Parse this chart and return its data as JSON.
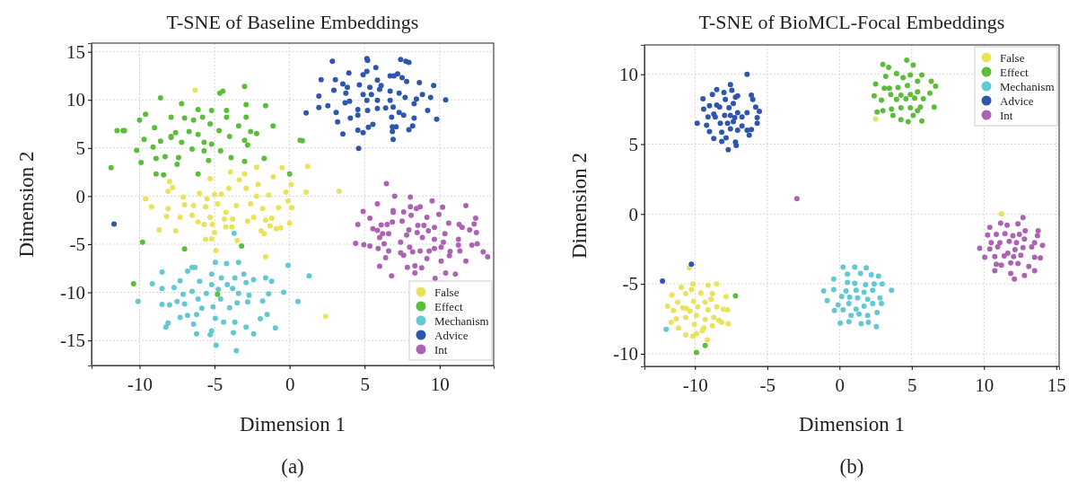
{
  "chart_data": [
    {
      "type": "scatter",
      "title": "T-SNE of Baseline Embeddings",
      "xlabel": "Dimension 1",
      "ylabel": "Dimension 2",
      "annotations": [
        "(a)"
      ],
      "xlim": [
        -13.2,
        13.6
      ],
      "ylim": [
        -17.6,
        15.9
      ],
      "xticks": [
        -10,
        -5,
        0,
        5,
        10
      ],
      "yticks": [
        -15,
        -10,
        -5,
        0,
        5,
        10,
        15
      ],
      "grid": true,
      "legend": "bottom right",
      "marker": "circle",
      "series": [
        {
          "name": "False",
          "color": "#e9e35c",
          "x": [
            -6.3,
            -2.2,
            -0.5,
            1.2,
            -3.95,
            -3.0,
            -5.3,
            -8.0,
            -7.8,
            -8.1,
            -3.35,
            -2.1,
            -1.1,
            0.1,
            1.1,
            3.3,
            -6.0,
            -7.1,
            -5.5,
            -5.0,
            -4.55,
            -4.05,
            -2.9,
            -2.2,
            -1.4,
            -0.25,
            -9.6,
            -9.2,
            -8.1,
            -7.0,
            -6.4,
            -5.6,
            -4.8,
            -4.25,
            -3.55,
            -2.6,
            -1.8,
            -0.75,
            -0.1,
            0.15,
            -8.2,
            -7.3,
            -6.5,
            -6.1,
            -5.3,
            -4.35,
            -3.8,
            -2.8,
            -2.4,
            -1.6,
            -1.2,
            0,
            -8.7,
            -7.6,
            -5.7,
            -5.15,
            -4.25,
            -3.85,
            -1.9,
            -1.7,
            -1.3,
            -0.9,
            -0.6,
            -5.6,
            -5.2,
            -5.0,
            -3.5,
            -4.9,
            -1.6,
            2.4
          ],
          "values": [
            11.0,
            3.0,
            2.95,
            3.1,
            2.5,
            2.3,
            1.8,
            1.5,
            0.9,
            0.5,
            1.7,
            1.2,
            2.0,
            1.2,
            0.4,
            0.5,
            0.3,
            -0.1,
            -0.3,
            0.15,
            0.2,
            0.8,
            0.8,
            0,
            0.1,
            0.4,
            -0.3,
            -1.1,
            -1.3,
            -0.9,
            -1.0,
            -1.1,
            -0.8,
            -1.7,
            -1.0,
            -0.8,
            -1.3,
            -1.2,
            -0.5,
            -1.2,
            -2.1,
            -2.2,
            -2.0,
            -2.7,
            -2.2,
            -2.4,
            -2.4,
            -2.6,
            -2.2,
            -2.5,
            -2.3,
            -2.8,
            -3.5,
            -3.6,
            -2.95,
            -2.95,
            -3.2,
            -3.2,
            -3.6,
            -3.9,
            -3.1,
            -3.4,
            -3.3,
            -4.5,
            -4.45,
            -3.8,
            -4.6,
            -5.65,
            -6.3,
            -12.5
          ]
        },
        {
          "name": "Effect",
          "color": "#5cbd3c",
          "x": [
            -3.0,
            -4.65,
            -4.45,
            -8.6,
            -7.2,
            -6.1,
            -5.2,
            -4.2,
            -2.9,
            -1.6,
            -9.6,
            -7.9,
            -7.0,
            -6.4,
            -5.8,
            -4.2,
            -2.9,
            -10.0,
            -11.5,
            -11.1,
            -11.0,
            -9.0,
            -7.9,
            -7.6,
            -6.7,
            -6.1,
            -5.3,
            -4.7,
            -3.4,
            -2.6,
            -1.1,
            -9.7,
            -9.1,
            -8.6,
            -7.9,
            -7.2,
            -6.5,
            -5.7,
            -5.2,
            -4.0,
            -3.0,
            -2.2,
            0.7,
            0.85,
            -10.2,
            -8.9,
            -8.3,
            -7.4,
            -7.5,
            -5.7,
            -5.4,
            -4.6,
            -3.9,
            -2.8,
            -1.7,
            -3.0,
            -9.9,
            -11.9,
            -8.9,
            -8.4,
            -6.1,
            0,
            -9.8,
            -7.0,
            -3.2,
            -10.4,
            -4.8
          ],
          "values": [
            11.4,
            10.7,
            10.9,
            10.2,
            9.6,
            9.0,
            8.9,
            8.9,
            9.5,
            9.4,
            8.5,
            8.2,
            8.1,
            7.9,
            8.2,
            8.2,
            8.2,
            7.9,
            6.8,
            6.8,
            6.8,
            7.1,
            6.2,
            6.6,
            6.7,
            6.4,
            7.5,
            6.8,
            7.3,
            6.7,
            7.3,
            5.9,
            5.1,
            5.7,
            6.1,
            5.6,
            4.9,
            5.6,
            5.4,
            6.2,
            5.8,
            6.5,
            5.8,
            5.75,
            4.75,
            3.9,
            4.1,
            4.0,
            3.3,
            4.7,
            3.7,
            4.7,
            4.0,
            5.3,
            3.9,
            3.6,
            3.5,
            2.95,
            2.3,
            2.2,
            2.3,
            2.3,
            -4.8,
            -5.5,
            -5.2,
            -9.1,
            -10.2
          ]
        },
        {
          "name": "Mechanism",
          "color": "#62c8d4",
          "x": [
            -3.7,
            -4.95,
            -4.2,
            -3.4,
            -0.1,
            -6.5,
            -6.3,
            -8.5,
            -6.8,
            -5.2,
            -4.55,
            -3.65,
            -3.05,
            -2.4,
            -1.6,
            -1.2,
            1.3,
            -9.15,
            -7.3,
            -6.0,
            -5.2,
            -4.15,
            -2.9,
            -8.5,
            -7.7,
            -7.1,
            -6.5,
            -5.55,
            -4.75,
            -3.8,
            -3.4,
            -2.7,
            -0.4,
            -1.4,
            -10.1,
            -8.5,
            -7.5,
            -7.0,
            -6.1,
            -5.85,
            -5.1,
            -4.6,
            -4.0,
            -3.5,
            -2.8,
            -1.8,
            0.55,
            -8.0,
            -7.3,
            -6.8,
            -6.2,
            -4.95,
            -4.4,
            -3.65,
            -2.9,
            -1.95,
            -1.5,
            -8.1,
            -8.25,
            -6.4,
            -6.2,
            -5.2,
            -5.3,
            -3.75,
            -2.4,
            -0.95,
            -4.9,
            -3.55
          ],
          "values": [
            -3.85,
            -6.9,
            -7.0,
            -6.9,
            -7.2,
            -7.4,
            -7.4,
            -7.9,
            -7.8,
            -8.1,
            -8.5,
            -8.5,
            -8.1,
            -8.7,
            -8.5,
            -8.85,
            -8.3,
            -9.1,
            -8.8,
            -8.85,
            -9.2,
            -9.2,
            -9.0,
            -9.6,
            -9.5,
            -10.2,
            -9.9,
            -10.1,
            -9.7,
            -9.6,
            -10.1,
            -10.3,
            -10.0,
            -10.15,
            -10.95,
            -11.25,
            -10.95,
            -11.2,
            -10.7,
            -11.65,
            -11.5,
            -10.7,
            -11.6,
            -11.1,
            -11.0,
            -10.9,
            -10.95,
            -11.3,
            -12.6,
            -12.4,
            -12.3,
            -12.7,
            -13.1,
            -13.1,
            -13.6,
            -12.75,
            -12.3,
            -13.2,
            -13.6,
            -13.3,
            -14.3,
            -14.0,
            -14.4,
            -14.2,
            -14.3,
            -13.7,
            -15.5,
            -16.05
          ]
        },
        {
          "name": "Advice",
          "color": "#2f56ad",
          "x": [
            2.85,
            5.15,
            5.2,
            7.4,
            7.75,
            7.95,
            5.75,
            3.95,
            4.9,
            5.15,
            7.2,
            6.7,
            6.95,
            7.5,
            2.1,
            3.05,
            3.55,
            3.85,
            4.65,
            5.35,
            5.85,
            6.1,
            6.7,
            7.8,
            8.65,
            9.6,
            2.95,
            1.95,
            3.75,
            4.9,
            5.45,
            6.0,
            7.3,
            7.7,
            8.45,
            8.85,
            9.4,
            10.4,
            2.55,
            3.7,
            4.0,
            5.15,
            5.85,
            6.7,
            8.3,
            1.95,
            4.55,
            5.2,
            5.85,
            6.4,
            6.9,
            7.3,
            9.2,
            1.1,
            3.1,
            4.55,
            6.8,
            7.6,
            8.3,
            9.8,
            4.05,
            3.2,
            5.55,
            5.25,
            6.85,
            7.1,
            8.2,
            4.55,
            4.9,
            6.85,
            7.95,
            3.55,
            6.9,
            4.6,
            -11.7
          ],
          "values": [
            14.0,
            14.3,
            14.1,
            14.2,
            14.0,
            13.9,
            13.35,
            12.8,
            12.6,
            12.95,
            12.7,
            12.5,
            12.5,
            12.3,
            12.1,
            12.1,
            11.65,
            11.3,
            11.55,
            11.3,
            12.05,
            11.5,
            10.9,
            11.9,
            11.8,
            11.5,
            11.0,
            10.4,
            10.7,
            10.55,
            10.55,
            11.1,
            10.7,
            10.25,
            10.1,
            10.55,
            10.25,
            10.0,
            9.4,
            9.7,
            9.85,
            9.95,
            9.95,
            9.95,
            9.6,
            9.2,
            9.0,
            8.9,
            9.1,
            9.15,
            9.25,
            8.7,
            8.9,
            8.65,
            8.7,
            8.4,
            8.2,
            8.4,
            8.1,
            8.0,
            8.1,
            7.7,
            7.45,
            7.15,
            7.2,
            7.2,
            7.3,
            6.85,
            6.6,
            6.7,
            6.9,
            6.45,
            5.9,
            4.95,
            -2.9
          ]
        },
        {
          "name": "Int",
          "color": "#ad63b3",
          "x": [
            6.45,
            7.0,
            8.05,
            9.5,
            5.85,
            6.9,
            6.9,
            8.05,
            8.45,
            8.7,
            10.2,
            11.75,
            4.9,
            5.35,
            7.6,
            8.1,
            9.15,
            9.95,
            12.4,
            4.55,
            6.1,
            6.5,
            6.85,
            7.5,
            8.55,
            8.95,
            9.65,
            10.6,
            11.3,
            12.3,
            5.55,
            5.85,
            6.2,
            6.6,
            7.95,
            8.5,
            9.25,
            10.35,
            11.5,
            12.45,
            12.0,
            6.0,
            7.8,
            8.85,
            9.65,
            10.25,
            11.25,
            4.4,
            4.95,
            5.35,
            6.3,
            7.4,
            8.0,
            8.7,
            9.3,
            9.65,
            10.1,
            11.25,
            12.15,
            12.5,
            5.9,
            6.6,
            7.4,
            8.2,
            10.7,
            11.35,
            12.9,
            13.2,
            6.4,
            7.6,
            9.15,
            10.1,
            11.75,
            10.65,
            6.0,
            7.85,
            8.35,
            8.8,
            6.8,
            8.35,
            10.4,
            11.05,
            9.7
          ],
          "values": [
            1.3,
            0,
            -0.1,
            -0.5,
            -0.8,
            -1.5,
            -1.7,
            -1.1,
            -1.3,
            -1.1,
            -1.15,
            -1.0,
            -1.6,
            -2.3,
            -1.65,
            -2.0,
            -2.2,
            -1.9,
            -2.3,
            -2.95,
            -3.0,
            -2.95,
            -2.7,
            -2.6,
            -3.05,
            -3.05,
            -3.25,
            -2.8,
            -2.95,
            -2.9,
            -3.4,
            -3.55,
            -3.9,
            -3.9,
            -3.5,
            -3.8,
            -3.6,
            -3.9,
            -3.25,
            -3.8,
            -3.5,
            -4.3,
            -4.05,
            -4.3,
            -4.5,
            -4.8,
            -4.5,
            -4.9,
            -5.05,
            -5.2,
            -4.95,
            -4.8,
            -5.3,
            -5.7,
            -5.7,
            -5.45,
            -5.3,
            -5.1,
            -5.1,
            -4.95,
            -5.45,
            -5.7,
            -5.9,
            -5.8,
            -5.75,
            -5.7,
            -5.8,
            -6.3,
            -6.4,
            -6.15,
            -6.5,
            -6.75,
            -6.75,
            -6.2,
            -7.3,
            -7.4,
            -7.25,
            -7.45,
            -8.3,
            -8.0,
            -8.0,
            -8.1,
            -8.55
          ]
        }
      ]
    },
    {
      "type": "scatter",
      "title": "T-SNE of BioMCL-Focal Embeddings",
      "xlabel": "Dimension 1",
      "ylabel": "Dimension 2",
      "annotations": [
        "(b)"
      ],
      "xlim": [
        -13.5,
        15.2
      ],
      "ylim": [
        -10.9,
        12.1
      ],
      "xticks": [
        -10,
        -5,
        0,
        5,
        10,
        15
      ],
      "yticks": [
        -10,
        -5,
        0,
        5,
        10
      ],
      "grid": true,
      "legend": "top right",
      "marker": "circle",
      "series": [
        {
          "name": "False",
          "color": "#e9e35c",
          "x": [
            11.2,
            2.5,
            -10.4,
            -10.95,
            -10.15,
            -9.1,
            -8.5,
            -11.6,
            -10.65,
            -10.25,
            -9.6,
            -8.8,
            -7.85,
            -11.9,
            -11.2,
            -10.6,
            -10.1,
            -9.3,
            -8.9,
            -8.05,
            -7.75,
            -11.5,
            -10.85,
            -10.35,
            -9.8,
            -9.1,
            -8.5,
            -11.3,
            -10.65,
            -9.9,
            -9.3,
            -8.7,
            -8.15,
            -7.7,
            -11.65,
            -10.05,
            -9.4,
            -8.8,
            -11.15,
            -10.65,
            -10.15,
            -9.9,
            -9.5,
            -9.15,
            -8.35
          ],
          "values": [
            0.0,
            6.8,
            -3.85,
            -5.25,
            -5.0,
            -5.1,
            -5.0,
            -5.8,
            -5.7,
            -5.4,
            -5.65,
            -5.7,
            -5.9,
            -6.6,
            -6.3,
            -6.75,
            -6.25,
            -6.3,
            -6.1,
            -6.8,
            -6.85,
            -6.9,
            -6.7,
            -6.95,
            -6.65,
            -6.85,
            -6.65,
            -7.5,
            -7.4,
            -7.25,
            -7.55,
            -7.4,
            -7.75,
            -7.85,
            -7.75,
            -7.9,
            -8.15,
            -8.0,
            -8.15,
            -8.65,
            -8.75,
            -8.55,
            -8.35,
            -9.0,
            -7.6
          ]
        },
        {
          "name": "Effect",
          "color": "#5cbd3c",
          "x": [
            4.65,
            3.0,
            3.4,
            5.1,
            3.2,
            3.95,
            4.4,
            4.9,
            5.7,
            2.5,
            3.1,
            3.45,
            4.05,
            4.7,
            5.4,
            6.35,
            6.65,
            2.4,
            2.9,
            3.55,
            4.25,
            4.9,
            5.4,
            6.25,
            3.95,
            4.6,
            5.2,
            5.8,
            3.0,
            3.6,
            4.25,
            4.9,
            5.6,
            6.55,
            2.6,
            3.7,
            4.25,
            4.75,
            5.1,
            5.7,
            5.4,
            -7.2,
            -9.3,
            -9.9
          ],
          "values": [
            11.0,
            10.7,
            10.5,
            10.65,
            9.85,
            10.05,
            9.75,
            9.95,
            9.95,
            9.3,
            9.0,
            9.0,
            9.05,
            9.2,
            9.5,
            9.5,
            9.15,
            8.45,
            8.15,
            8.55,
            8.5,
            8.55,
            8.75,
            8.65,
            8.2,
            8.25,
            8.3,
            8.25,
            7.4,
            7.5,
            7.6,
            7.6,
            7.65,
            7.65,
            7.3,
            7.05,
            6.75,
            6.6,
            7.05,
            6.65,
            7.4,
            -5.85,
            -9.4,
            -9.9
          ]
        },
        {
          "name": "Mechanism",
          "color": "#62c8d4",
          "x": [
            0.25,
            1.05,
            1.85,
            0.55,
            1.45,
            2.2,
            2.7,
            -0.4,
            0.55,
            1.05,
            1.8,
            2.4,
            2.95,
            -1.1,
            -0.4,
            0.45,
            1.15,
            1.7,
            2.3,
            3.6,
            0.15,
            0.7,
            1.25,
            1.95,
            2.8,
            -0.85,
            -0.1,
            0.65,
            1.15,
            1.7,
            2.3,
            2.9,
            -0.35,
            0.25,
            0.8,
            1.35,
            1.95,
            2.6,
            0.05,
            1.5,
            2.0,
            2.55,
            0.65,
            -12.0
          ],
          "values": [
            -3.8,
            -3.8,
            -3.85,
            -4.3,
            -4.25,
            -4.35,
            -4.45,
            -4.65,
            -4.9,
            -4.95,
            -5.05,
            -5.0,
            -5.0,
            -5.5,
            -5.4,
            -5.5,
            -5.45,
            -5.6,
            -5.45,
            -5.45,
            -5.9,
            -5.95,
            -6.0,
            -6.1,
            -6.0,
            -6.2,
            -6.5,
            -6.4,
            -6.8,
            -6.6,
            -6.4,
            -6.4,
            -6.9,
            -6.85,
            -7.25,
            -7.15,
            -7.25,
            -7.05,
            -7.8,
            -7.85,
            -7.75,
            -8.05,
            -7.7,
            -8.25
          ]
        },
        {
          "name": "Advice",
          "color": "#2f56ad",
          "x": [
            -6.4,
            -7.55,
            -8.5,
            -8.0,
            -7.45,
            -9.45,
            -8.8,
            -7.9,
            -7.2,
            -7.05,
            -6.1,
            -6.0,
            -8.5,
            -9.0,
            -8.3,
            -7.65,
            -7.35,
            -5.8,
            -9.4,
            -8.7,
            -7.95,
            -7.55,
            -7.05,
            -6.4,
            -5.55,
            -9.1,
            -8.6,
            -7.25,
            -6.75,
            -5.7,
            -9.85,
            -9.2,
            -8.25,
            -7.75,
            -7.35,
            -6.75,
            -5.7,
            -9.0,
            -8.15,
            -7.55,
            -7.05,
            -6.4,
            -6.1,
            -8.7,
            -7.85,
            -7.2,
            -7.15,
            -7.7,
            -8.15,
            -6.25,
            -10.25,
            -12.25
          ],
          "values": [
            10.0,
            9.25,
            8.9,
            8.7,
            8.85,
            8.25,
            8.55,
            8.2,
            8.35,
            8.45,
            8.5,
            8.2,
            7.8,
            7.75,
            7.65,
            7.6,
            7.9,
            7.65,
            7.5,
            7.15,
            7.05,
            7.05,
            7.25,
            7.25,
            7.35,
            6.95,
            6.95,
            6.9,
            6.95,
            6.9,
            6.5,
            6.35,
            6.5,
            6.5,
            6.6,
            6.3,
            6.5,
            5.9,
            5.85,
            6.1,
            6.0,
            6.0,
            6.05,
            5.4,
            5.45,
            5.15,
            4.9,
            4.6,
            5.2,
            5.65,
            -3.6,
            -4.8
          ]
        },
        {
          "name": "Int",
          "color": "#ad63b3",
          "x": [
            -2.95,
            12.7,
            11.15,
            11.6,
            12.35,
            10.4,
            13.75,
            10.25,
            10.85,
            11.45,
            12.0,
            12.45,
            12.85,
            13.7,
            10.5,
            11.1,
            11.75,
            12.25,
            12.8,
            13.5,
            14.05,
            9.7,
            10.4,
            10.95,
            11.65,
            12.15,
            12.7,
            13.3,
            10.05,
            10.75,
            11.4,
            12.05,
            12.55,
            13.5,
            13.9,
            10.85,
            11.2,
            11.85,
            12.35,
            13.1,
            10.75,
            11.85,
            12.8,
            12.1,
            13.5
          ],
          "values": [
            1.1,
            -0.25,
            -0.65,
            -0.8,
            -0.7,
            -0.95,
            -1.2,
            -1.5,
            -1.45,
            -1.4,
            -1.55,
            -1.45,
            -1.2,
            -1.55,
            -2.05,
            -2.05,
            -1.95,
            -2.05,
            -1.8,
            -2.05,
            -2.25,
            -2.45,
            -2.5,
            -2.35,
            -2.8,
            -2.55,
            -2.4,
            -2.35,
            -3.1,
            -3.05,
            -3.0,
            -3.05,
            -2.95,
            -3.1,
            -3.15,
            -3.6,
            -3.65,
            -3.5,
            -3.55,
            -3.75,
            -4.05,
            -4.25,
            -4.4,
            -4.65,
            -4.05
          ]
        }
      ]
    }
  ]
}
